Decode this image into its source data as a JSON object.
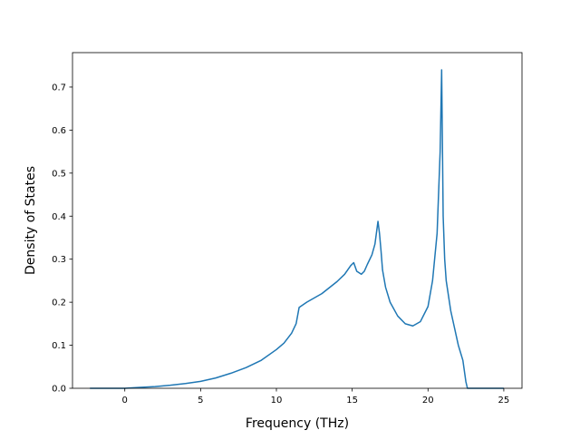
{
  "chart_data": {
    "type": "line",
    "title": "",
    "xlabel": "Frequency (THz)",
    "ylabel": "Density of States",
    "xlim": [
      -3.45,
      26.2
    ],
    "ylim": [
      0.0,
      0.78
    ],
    "xticks": [
      0,
      5,
      10,
      15,
      20,
      25
    ],
    "yticks": [
      0.0,
      0.1,
      0.2,
      0.3,
      0.4,
      0.5,
      0.6,
      0.7
    ],
    "xtick_labels": [
      "0",
      "5",
      "10",
      "15",
      "20",
      "25"
    ],
    "ytick_labels": [
      "0.0",
      "0.1",
      "0.2",
      "0.3",
      "0.4",
      "0.5",
      "0.6",
      "0.7"
    ],
    "grid": false,
    "legend": "none",
    "line_color": "#1f77b4",
    "series": [
      {
        "x": [
          -2.3,
          -1.0,
          0.0,
          1.0,
          2.0,
          3.0,
          4.0,
          5.0,
          6.0,
          7.0,
          8.0,
          9.0,
          10.0,
          10.5,
          11.0,
          11.3,
          11.5,
          12.0,
          13.0,
          14.0,
          14.5,
          14.9,
          15.1,
          15.3,
          15.6,
          15.8,
          16.0,
          16.3,
          16.5,
          16.7,
          16.8,
          16.9,
          17.0,
          17.2,
          17.5,
          18.0,
          18.5,
          19.0,
          19.5,
          20.0,
          20.3,
          20.6,
          20.8,
          20.9,
          21.0,
          21.1,
          21.2,
          21.5,
          22.0,
          22.3,
          22.5,
          22.6,
          23.0,
          24.0,
          25.0
        ],
        "y": [
          0.0,
          0.0,
          0.0,
          0.002,
          0.004,
          0.007,
          0.011,
          0.016,
          0.024,
          0.035,
          0.048,
          0.065,
          0.09,
          0.105,
          0.128,
          0.15,
          0.188,
          0.2,
          0.22,
          0.248,
          0.265,
          0.285,
          0.292,
          0.272,
          0.265,
          0.272,
          0.288,
          0.31,
          0.335,
          0.388,
          0.36,
          0.32,
          0.275,
          0.235,
          0.2,
          0.168,
          0.15,
          0.145,
          0.155,
          0.19,
          0.25,
          0.36,
          0.55,
          0.74,
          0.4,
          0.3,
          0.25,
          0.18,
          0.1,
          0.065,
          0.015,
          0.0,
          0.0,
          0.0,
          0.0
        ]
      }
    ]
  }
}
